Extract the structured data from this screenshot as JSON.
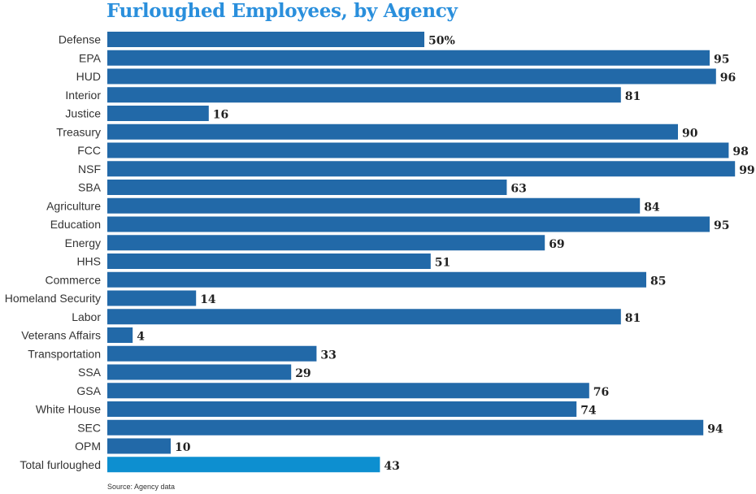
{
  "chart_data": {
    "type": "bar",
    "orientation": "horizontal",
    "title": "Furloughed Employees, by Agency",
    "categories": [
      "Defense",
      "EPA",
      "HUD",
      "Interior",
      "Justice",
      "Treasury",
      "FCC",
      "NSF",
      "SBA",
      "Agriculture",
      "Education",
      "Energy",
      "HHS",
      "Commerce",
      "Homeland Security",
      "Labor",
      "Veterans Affairs",
      "Transportation",
      "SSA",
      "GSA",
      "White House",
      "SEC",
      "OPM",
      "Total furloughed"
    ],
    "values": [
      50,
      95,
      96,
      81,
      16,
      90,
      98,
      99,
      63,
      84,
      95,
      69,
      51,
      85,
      14,
      81,
      4,
      33,
      29,
      76,
      74,
      94,
      10,
      43
    ],
    "value_labels": [
      "50%",
      "95",
      "96",
      "81",
      "16",
      "90",
      "98",
      "99",
      "63",
      "84",
      "95",
      "69",
      "51",
      "85",
      "14",
      "81",
      "4",
      "33",
      "29",
      "76",
      "74",
      "94",
      "10",
      "43"
    ],
    "unit": "%",
    "xlim": [
      0,
      100
    ],
    "grid": false,
    "colors": {
      "bar": "#2269a8",
      "total_bar": "#0d8fd0",
      "title": "#2a8fdc"
    },
    "source": "Source: Agency data"
  }
}
